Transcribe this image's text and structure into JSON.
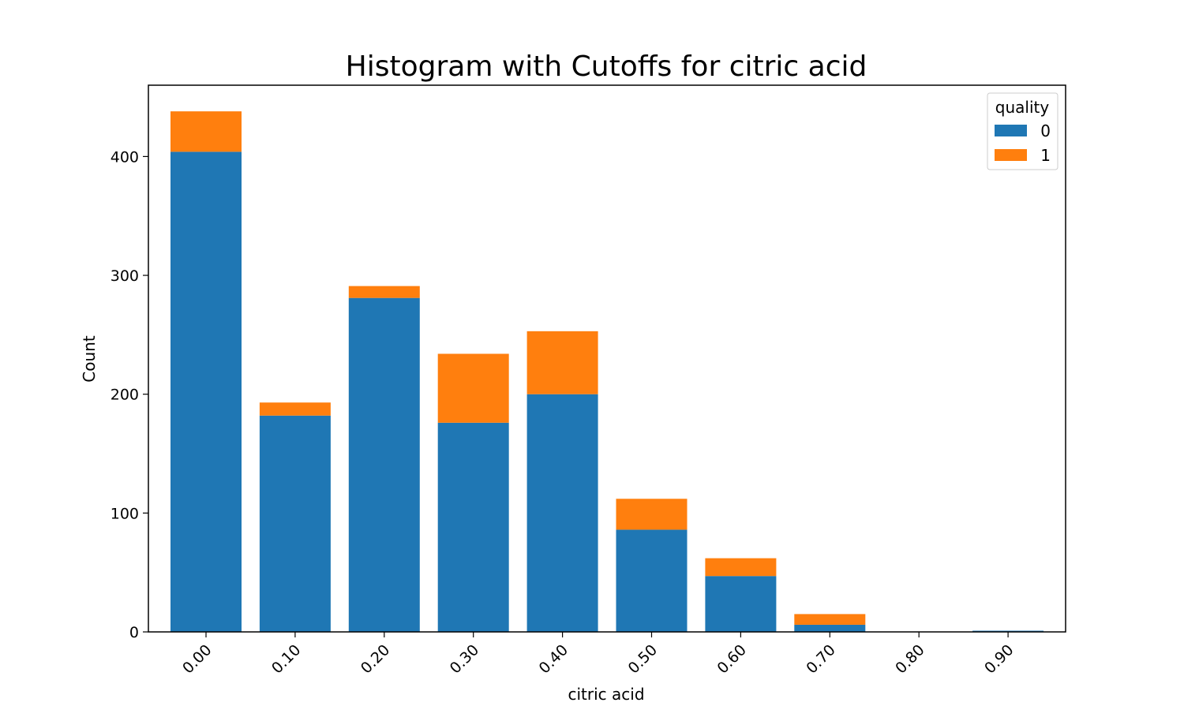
{
  "chart_data": {
    "type": "bar",
    "stacked": true,
    "title": "Histogram with Cutoffs for citric acid",
    "xlabel": "citric acid",
    "ylabel": "Count",
    "ylim": [
      0,
      460
    ],
    "yticks": [
      0,
      100,
      200,
      300,
      400
    ],
    "categories": [
      "0.00",
      "0.10",
      "0.20",
      "0.30",
      "0.40",
      "0.50",
      "0.60",
      "0.70",
      "0.80",
      "0.90"
    ],
    "series": [
      {
        "name": "0",
        "color": "#1f77b4",
        "values": [
          404,
          182,
          281,
          176,
          200,
          86,
          47,
          6,
          0,
          1
        ]
      },
      {
        "name": "1",
        "color": "#ff7f0e",
        "values": [
          34,
          11,
          10,
          58,
          53,
          26,
          15,
          9,
          0,
          0
        ]
      }
    ],
    "legend": {
      "title": "quality",
      "placement": "top-right"
    },
    "grid": false
  }
}
